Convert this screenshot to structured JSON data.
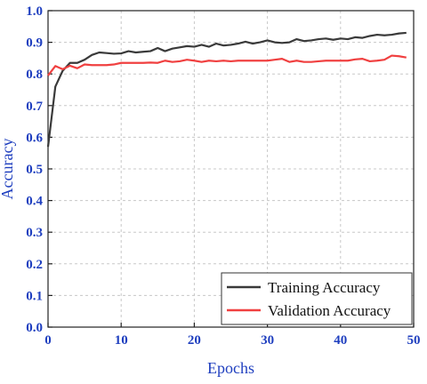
{
  "chart_data": {
    "type": "line",
    "xlabel": "Epochs",
    "ylabel": "Accuracy",
    "xlim": [
      0,
      50
    ],
    "ylim": [
      0.0,
      1.0
    ],
    "x_ticks": [
      0,
      10,
      20,
      30,
      40,
      50
    ],
    "y_ticks": [
      0.0,
      0.1,
      0.2,
      0.3,
      0.4,
      0.5,
      0.6,
      0.7,
      0.8,
      0.9,
      1.0
    ],
    "x_tick_labels": [
      "0",
      "10",
      "20",
      "30",
      "40",
      "50"
    ],
    "y_tick_labels": [
      "0.0",
      "0.1",
      "0.2",
      "0.3",
      "0.4",
      "0.5",
      "0.6",
      "0.7",
      "0.8",
      "0.9",
      "1.0"
    ],
    "grid": true,
    "legend_position": "bottom-right",
    "axis_color": "#1f3fbf",
    "x": [
      0,
      1,
      2,
      3,
      4,
      5,
      6,
      7,
      8,
      9,
      10,
      11,
      12,
      13,
      14,
      15,
      16,
      17,
      18,
      19,
      20,
      21,
      22,
      23,
      24,
      25,
      26,
      27,
      28,
      29,
      30,
      31,
      32,
      33,
      34,
      35,
      36,
      37,
      38,
      39,
      40,
      41,
      42,
      43,
      44,
      45,
      46,
      47,
      48,
      49
    ],
    "series": [
      {
        "name": "Training Accuracy",
        "color": "#3a3a3a",
        "values": [
          0.57,
          0.76,
          0.81,
          0.835,
          0.835,
          0.845,
          0.86,
          0.868,
          0.866,
          0.864,
          0.865,
          0.872,
          0.868,
          0.87,
          0.872,
          0.882,
          0.872,
          0.88,
          0.884,
          0.888,
          0.886,
          0.892,
          0.886,
          0.896,
          0.89,
          0.892,
          0.896,
          0.902,
          0.896,
          0.9,
          0.906,
          0.9,
          0.898,
          0.9,
          0.91,
          0.904,
          0.906,
          0.91,
          0.912,
          0.908,
          0.912,
          0.91,
          0.916,
          0.914,
          0.92,
          0.924,
          0.922,
          0.924,
          0.928,
          0.93
        ]
      },
      {
        "name": "Validation Accuracy",
        "color": "#f04040",
        "values": [
          0.795,
          0.825,
          0.815,
          0.826,
          0.818,
          0.83,
          0.828,
          0.828,
          0.828,
          0.83,
          0.835,
          0.835,
          0.835,
          0.835,
          0.836,
          0.835,
          0.842,
          0.838,
          0.84,
          0.845,
          0.842,
          0.838,
          0.842,
          0.84,
          0.842,
          0.84,
          0.842,
          0.842,
          0.842,
          0.842,
          0.842,
          0.845,
          0.848,
          0.838,
          0.842,
          0.838,
          0.838,
          0.84,
          0.842,
          0.842,
          0.842,
          0.842,
          0.846,
          0.848,
          0.84,
          0.842,
          0.845,
          0.858,
          0.856,
          0.852
        ]
      }
    ]
  }
}
